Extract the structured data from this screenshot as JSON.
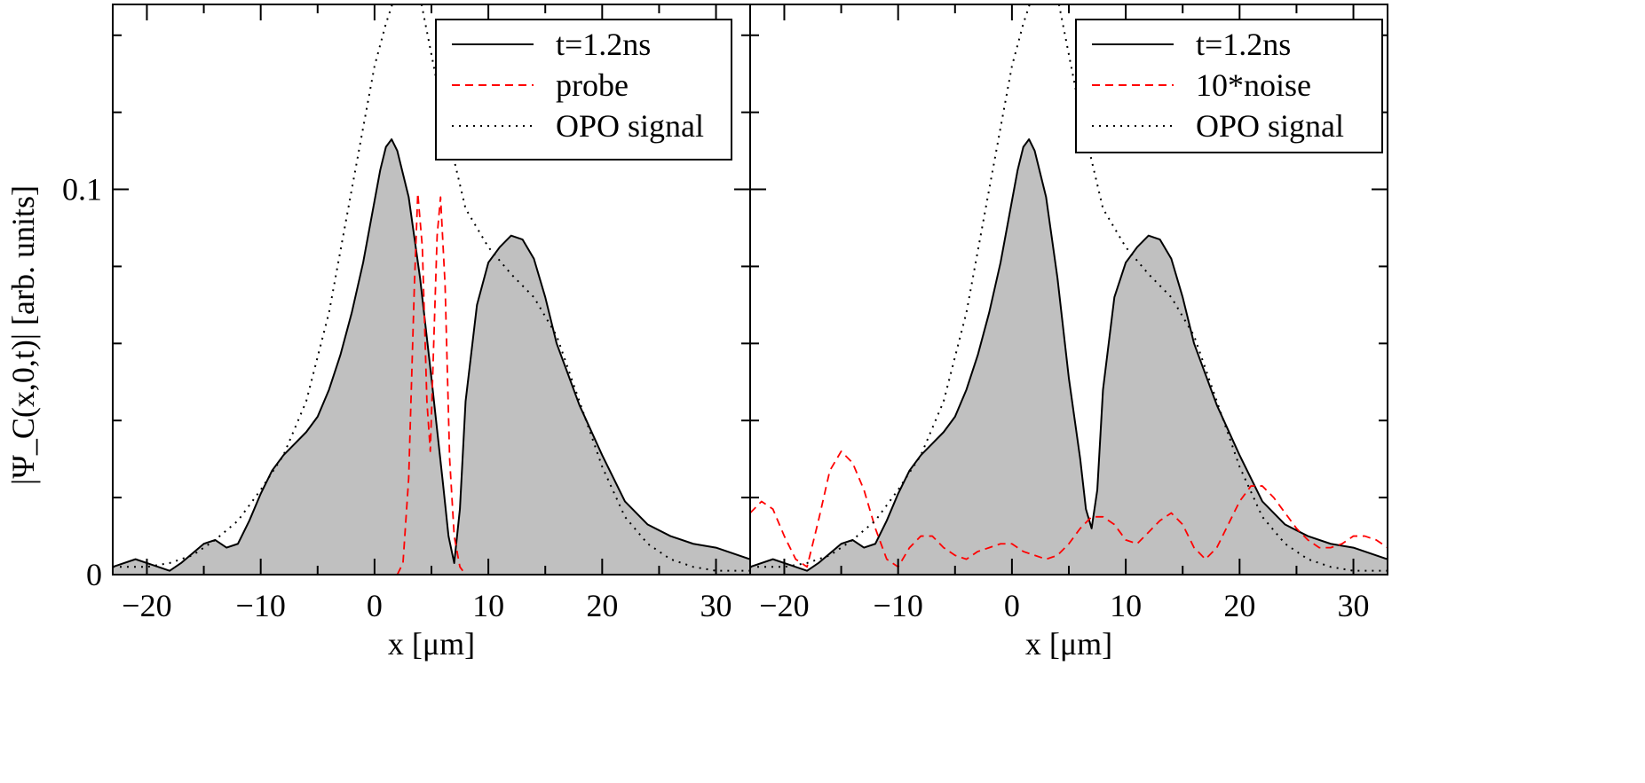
{
  "chart_data": [
    {
      "type": "line",
      "xlabel": "x [μm]",
      "ylabel": "|Ψ_C(x,0,t)| [arb. units]",
      "xlim": [
        -23,
        33
      ],
      "ylim": [
        0,
        0.148
      ],
      "xticks": [
        -20,
        -10,
        0,
        10,
        20,
        30
      ],
      "xtick_labels": [
        "−20",
        "−10",
        "0",
        "10",
        "20",
        "30"
      ],
      "yticks": [
        0,
        0.1
      ],
      "ytick_labels": [
        "0",
        "0.1"
      ],
      "legend_position": "top-right",
      "series": [
        {
          "name": "t=1.2ns",
          "style": "solid-filled",
          "color": "#000000",
          "fill": "#c0c0c0",
          "x": [
            -23,
            -21,
            -19,
            -18,
            -17,
            -15,
            -14,
            -13,
            -12,
            -11,
            -10,
            -9,
            -8,
            -7,
            -6,
            -5,
            -4,
            -3,
            -2,
            -1,
            0,
            0.5,
            1,
            1.5,
            2,
            3,
            4,
            5,
            6,
            6.5,
            7,
            7.5,
            8,
            9,
            10,
            11,
            12,
            13,
            14,
            15,
            16,
            17,
            18,
            20,
            22,
            24,
            26,
            28,
            30,
            32,
            33
          ],
          "y": [
            0.002,
            0.004,
            0.002,
            0.001,
            0.003,
            0.008,
            0.009,
            0.007,
            0.008,
            0.014,
            0.021,
            0.027,
            0.031,
            0.034,
            0.037,
            0.041,
            0.048,
            0.057,
            0.068,
            0.081,
            0.097,
            0.105,
            0.111,
            0.113,
            0.11,
            0.098,
            0.077,
            0.051,
            0.024,
            0.01,
            0.003,
            0.017,
            0.045,
            0.07,
            0.081,
            0.085,
            0.088,
            0.087,
            0.082,
            0.072,
            0.06,
            0.052,
            0.044,
            0.031,
            0.019,
            0.013,
            0.01,
            0.008,
            0.007,
            0.005,
            0.004
          ]
        },
        {
          "name": "probe",
          "style": "dashed",
          "color": "#ff0000",
          "x": [
            2,
            2.5,
            3,
            3.5,
            3.8,
            4.2,
            4.6,
            4.9,
            5.2,
            5.5,
            5.8,
            6.2,
            6.6,
            7.0,
            7.5,
            8
          ],
          "y": [
            0.0,
            0.003,
            0.025,
            0.075,
            0.099,
            0.085,
            0.045,
            0.032,
            0.06,
            0.088,
            0.098,
            0.075,
            0.03,
            0.01,
            0.002,
            0.0
          ]
        },
        {
          "name": "OPO signal",
          "style": "dotted",
          "color": "#000000",
          "x": [
            -23,
            -20,
            -18,
            -16,
            -14,
            -12,
            -10,
            -8,
            -6,
            -4,
            -2,
            0,
            1,
            2,
            3,
            4,
            5,
            6,
            8,
            10,
            12,
            14,
            16,
            18,
            20,
            22,
            24,
            26,
            28,
            30,
            33
          ],
          "y": [
            0.002,
            0.002,
            0.003,
            0.005,
            0.009,
            0.014,
            0.022,
            0.031,
            0.045,
            0.068,
            0.1,
            0.132,
            0.143,
            0.152,
            0.156,
            0.15,
            0.135,
            0.12,
            0.095,
            0.085,
            0.078,
            0.072,
            0.062,
            0.045,
            0.028,
            0.015,
            0.008,
            0.004,
            0.002,
            0.001,
            0.001
          ]
        }
      ]
    },
    {
      "type": "line",
      "xlabel": "x [μm]",
      "xlim": [
        -23,
        33
      ],
      "ylim": [
        0,
        0.148
      ],
      "xticks": [
        -20,
        -10,
        0,
        10,
        20,
        30
      ],
      "xtick_labels": [
        "−20",
        "−10",
        "0",
        "10",
        "20",
        "30"
      ],
      "yticks": [
        0,
        0.1
      ],
      "legend_position": "top-right",
      "series": [
        {
          "name": "t=1.2ns",
          "style": "solid-filled",
          "color": "#000000",
          "fill": "#c0c0c0",
          "x": [
            -23,
            -21,
            -19,
            -18,
            -17,
            -15,
            -14,
            -13,
            -12,
            -11,
            -10,
            -9,
            -8,
            -7,
            -6,
            -5,
            -4,
            -3,
            -2,
            -1,
            0,
            0.5,
            1,
            1.5,
            2,
            3,
            4,
            5,
            6,
            6.5,
            7,
            7.5,
            8,
            9,
            10,
            11,
            12,
            13,
            14,
            15,
            16,
            17,
            18,
            20,
            22,
            24,
            26,
            28,
            30,
            32,
            33
          ],
          "y": [
            0.002,
            0.004,
            0.002,
            0.001,
            0.003,
            0.008,
            0.009,
            0.007,
            0.008,
            0.014,
            0.021,
            0.027,
            0.031,
            0.034,
            0.037,
            0.041,
            0.048,
            0.057,
            0.068,
            0.081,
            0.097,
            0.105,
            0.111,
            0.113,
            0.11,
            0.098,
            0.077,
            0.051,
            0.03,
            0.017,
            0.012,
            0.022,
            0.048,
            0.072,
            0.081,
            0.085,
            0.088,
            0.087,
            0.082,
            0.072,
            0.06,
            0.052,
            0.044,
            0.031,
            0.019,
            0.013,
            0.01,
            0.008,
            0.007,
            0.005,
            0.004
          ]
        },
        {
          "name": "10*noise",
          "style": "dashed",
          "color": "#ff0000",
          "x": [
            -23,
            -22,
            -21,
            -20,
            -19,
            -18,
            -17,
            -16,
            -15,
            -14,
            -13,
            -12,
            -11,
            -10,
            -9,
            -8,
            -7,
            -6,
            -5,
            -4,
            -3,
            -2,
            -1,
            0,
            1,
            2,
            3,
            4,
            5,
            6,
            7,
            8,
            9,
            10,
            11,
            12,
            13,
            14,
            15,
            16,
            17,
            18,
            19,
            20,
            21,
            22,
            23,
            24,
            25,
            26,
            27,
            28,
            29,
            30,
            31,
            32,
            33
          ],
          "y": [
            0.016,
            0.019,
            0.017,
            0.01,
            0.004,
            0.002,
            0.014,
            0.027,
            0.032,
            0.029,
            0.022,
            0.012,
            0.004,
            0.002,
            0.007,
            0.01,
            0.01,
            0.007,
            0.005,
            0.004,
            0.006,
            0.007,
            0.008,
            0.008,
            0.006,
            0.005,
            0.004,
            0.005,
            0.008,
            0.012,
            0.015,
            0.015,
            0.013,
            0.009,
            0.008,
            0.011,
            0.014,
            0.016,
            0.013,
            0.007,
            0.004,
            0.007,
            0.013,
            0.019,
            0.023,
            0.023,
            0.02,
            0.016,
            0.012,
            0.009,
            0.007,
            0.007,
            0.008,
            0.01,
            0.01,
            0.009,
            0.007
          ]
        },
        {
          "name": "OPO signal",
          "style": "dotted",
          "color": "#000000",
          "x": [
            -23,
            -20,
            -18,
            -16,
            -14,
            -12,
            -10,
            -8,
            -6,
            -4,
            -2,
            0,
            1,
            2,
            3,
            4,
            5,
            6,
            8,
            10,
            12,
            14,
            16,
            18,
            20,
            22,
            24,
            26,
            28,
            30,
            33
          ],
          "y": [
            0.002,
            0.002,
            0.003,
            0.005,
            0.009,
            0.014,
            0.022,
            0.031,
            0.045,
            0.068,
            0.1,
            0.132,
            0.143,
            0.152,
            0.156,
            0.15,
            0.135,
            0.12,
            0.095,
            0.085,
            0.078,
            0.072,
            0.062,
            0.045,
            0.028,
            0.015,
            0.008,
            0.004,
            0.002,
            0.001,
            0.001
          ]
        }
      ]
    }
  ]
}
